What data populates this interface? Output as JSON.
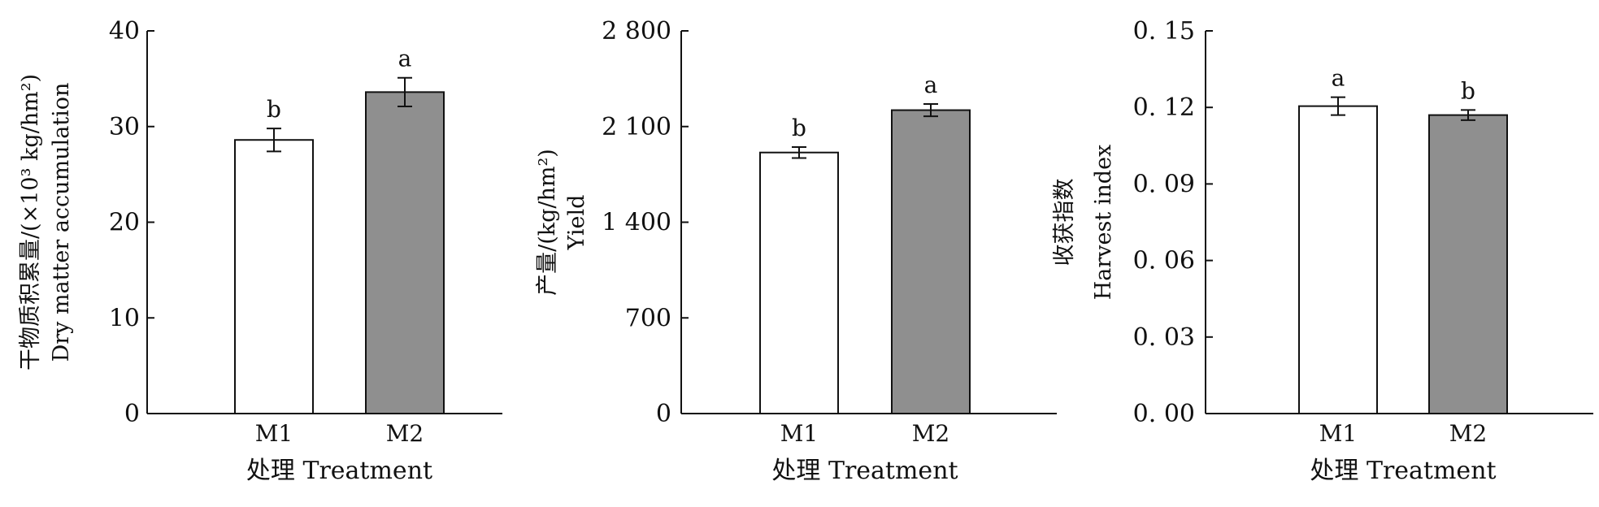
{
  "chart_data": [
    {
      "type": "bar",
      "categories": [
        "M1",
        "M2"
      ],
      "values": [
        28.6,
        33.6
      ],
      "errors": [
        1.2,
        1.5
      ],
      "significance": [
        "b",
        "a"
      ],
      "bar_colors": [
        "#ffffff",
        "#8f8f8f"
      ],
      "xlabel": "处理 Treatment",
      "ylabel_cn": "干物质积累量/(×10³ kg/hm²)",
      "ylabel_en": "Dry matter accumulation",
      "ylim": [
        0,
        40
      ],
      "yticks": [
        0,
        10,
        20,
        30,
        40
      ],
      "ytick_labels": [
        "0",
        "10",
        "20",
        "30",
        "40"
      ]
    },
    {
      "type": "bar",
      "categories": [
        "M1",
        "M2"
      ],
      "values": [
        1910,
        2220
      ],
      "errors": [
        40,
        45
      ],
      "significance": [
        "b",
        "a"
      ],
      "bar_colors": [
        "#ffffff",
        "#8f8f8f"
      ],
      "xlabel": "处理 Treatment",
      "ylabel_cn": "产量/(kg/hm²)",
      "ylabel_en": "Yield",
      "ylim": [
        0,
        2800
      ],
      "yticks": [
        0,
        700,
        1400,
        2100,
        2800
      ],
      "ytick_labels": [
        "0",
        "700",
        "1 400",
        "2 100",
        "2 800"
      ]
    },
    {
      "type": "bar",
      "categories": [
        "M1",
        "M2"
      ],
      "values": [
        0.1205,
        0.117
      ],
      "errors": [
        0.0035,
        0.002
      ],
      "significance": [
        "a",
        "b"
      ],
      "bar_colors": [
        "#ffffff",
        "#8f8f8f"
      ],
      "xlabel": "处理 Treatment",
      "ylabel_cn": "收获指数",
      "ylabel_en": "Harvest index",
      "ylim": [
        0,
        0.15
      ],
      "yticks": [
        0,
        0.03,
        0.06,
        0.09,
        0.12,
        0.15
      ],
      "ytick_labels": [
        "0. 00",
        "0. 03",
        "0. 06",
        "0. 09",
        "0. 12",
        "0. 15"
      ]
    }
  ]
}
